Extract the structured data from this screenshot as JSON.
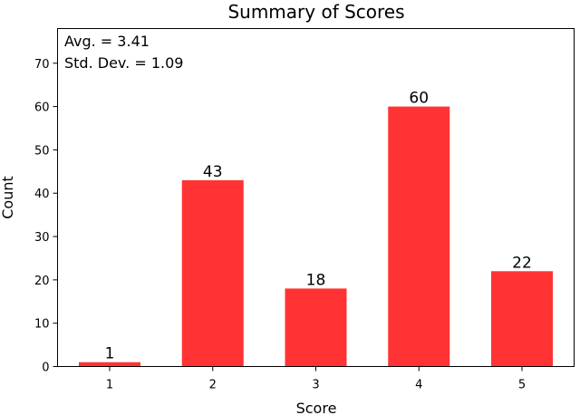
{
  "chart_data": {
    "type": "bar",
    "title": "Summary of Scores",
    "xlabel": "Score",
    "ylabel": "Count",
    "categories": [
      "1",
      "2",
      "3",
      "4",
      "5"
    ],
    "values": [
      1,
      43,
      18,
      60,
      22
    ],
    "data_labels": [
      "1",
      "43",
      "18",
      "60",
      "22"
    ],
    "ylim": [
      0,
      78
    ],
    "yticks": [
      0,
      10,
      20,
      30,
      40,
      50,
      60,
      70
    ],
    "annotations": [
      "Avg. = 3.41",
      "Std. Dev. = 1.09"
    ],
    "bar_color": "#ff3333",
    "grid": false,
    "legend": "none"
  }
}
